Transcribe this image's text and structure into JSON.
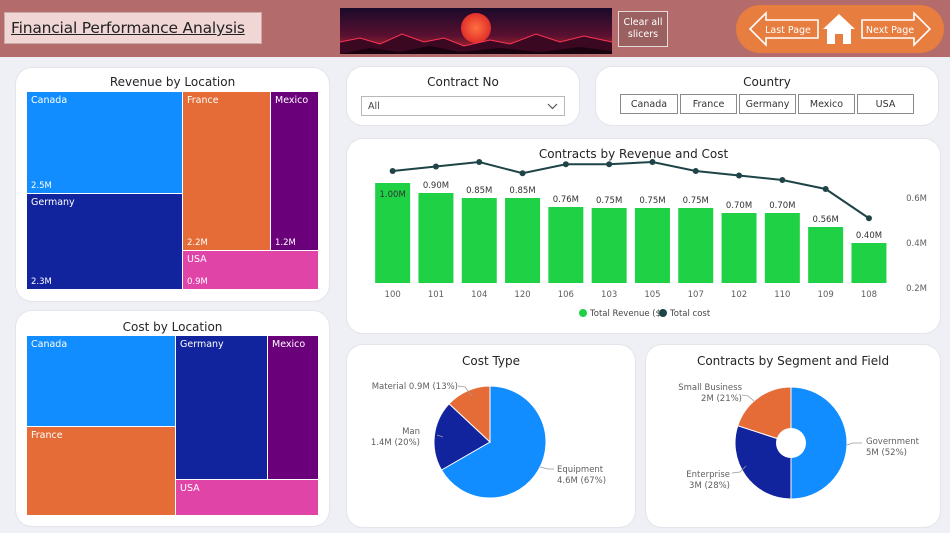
{
  "header": {
    "title": "Financial Performance Analysis",
    "clear_slicers": "Clear all slicers",
    "last_page": "Last Page",
    "next_page": "Next Page"
  },
  "colors": {
    "canada": "#118dff",
    "germany": "#12239e",
    "france": "#e66c37",
    "mexico": "#6b007b",
    "usa": "#e044a7",
    "revenue_bar": "#1fd145",
    "cost_line": "#1e4447"
  },
  "revenue_by_location": {
    "title": "Revenue by Location",
    "tiles": [
      {
        "label": "Canada",
        "value": "2.5M"
      },
      {
        "label": "Germany",
        "value": "2.3M"
      },
      {
        "label": "France",
        "value": "2.2M"
      },
      {
        "label": "Mexico",
        "value": "1.2M"
      },
      {
        "label": "USA",
        "value": "0.9M"
      }
    ]
  },
  "cost_by_location": {
    "title": "Cost by Location",
    "tiles": [
      {
        "label": "Canada"
      },
      {
        "label": "France"
      },
      {
        "label": "Germany"
      },
      {
        "label": "Mexico"
      },
      {
        "label": "USA"
      }
    ]
  },
  "contract_slicer": {
    "title": "Contract No",
    "selected": "All"
  },
  "country_slicer": {
    "title": "Country",
    "options": [
      "Canada",
      "France",
      "Germany",
      "Mexico",
      "USA"
    ]
  },
  "chart_data": [
    {
      "type": "bar",
      "title": "Contracts by Revenue and Cost",
      "categories": [
        "100",
        "101",
        "104",
        "120",
        "106",
        "103",
        "105",
        "107",
        "102",
        "110",
        "109",
        "108"
      ],
      "series": [
        {
          "name": "Total Revenue ($)",
          "type": "bar",
          "values": [
            1.0,
            0.9,
            0.85,
            0.85,
            0.76,
            0.75,
            0.75,
            0.75,
            0.7,
            0.7,
            0.56,
            0.4
          ],
          "labels": [
            "1.00M",
            "0.90M",
            "0.85M",
            "0.85M",
            "0.76M",
            "0.75M",
            "0.75M",
            "0.75M",
            "0.70M",
            "0.70M",
            "0.56M",
            "0.40M"
          ]
        },
        {
          "name": "Total cost",
          "type": "line",
          "axis": "right",
          "values": [
            0.72,
            0.74,
            0.76,
            0.71,
            0.75,
            0.75,
            0.76,
            0.72,
            0.7,
            0.68,
            0.64,
            0.51
          ]
        }
      ],
      "y2_ticks": [
        "0.2M",
        "0.4M",
        "0.6M"
      ],
      "legend": "bottom"
    },
    {
      "type": "pie",
      "title": "Cost Type",
      "slices": [
        {
          "label": "Equipment",
          "value": 4.6,
          "text": "Equipment",
          "text2": "4.6M (67%)",
          "percent": 67
        },
        {
          "label": "Man",
          "value": 1.4,
          "text": "Man",
          "text2": "1.4M (20%)",
          "percent": 20
        },
        {
          "label": "Material",
          "value": 0.9,
          "text": "Material 0.9M (13%)",
          "text2": "",
          "percent": 13
        }
      ]
    },
    {
      "type": "pie",
      "title": "Contracts by Segment and Field",
      "donut": true,
      "slices": [
        {
          "label": "Government",
          "value": 5,
          "text": "Government",
          "text2": "5M (52%)",
          "percent": 52
        },
        {
          "label": "Enterprise",
          "value": 3,
          "text": "Enterprise",
          "text2": "3M (28%)",
          "percent": 28
        },
        {
          "label": "Small Business",
          "value": 2,
          "text": "Small Business",
          "text2": "2M (21%)",
          "percent": 21
        }
      ]
    }
  ]
}
